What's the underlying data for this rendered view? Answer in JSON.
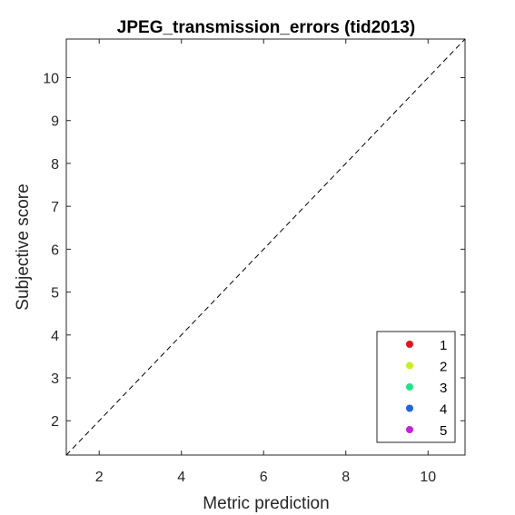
{
  "chart_data": {
    "type": "scatter",
    "title": "JPEG_transmission_errors (tid2013)",
    "xlabel": "Metric prediction",
    "ylabel": "Subjective score",
    "xlim": [
      1.2,
      10.9
    ],
    "ylim": [
      1.2,
      10.9
    ],
    "xticks": [
      2,
      4,
      6,
      8,
      10
    ],
    "yticks": [
      2,
      3,
      4,
      5,
      6,
      7,
      8,
      9,
      10
    ],
    "grid": false,
    "diagonal_reference": true,
    "legend_position": "bottom-right",
    "series": [
      {
        "name": "1",
        "color": "#e6141e",
        "points": []
      },
      {
        "name": "2",
        "color": "#c8f01e",
        "points": []
      },
      {
        "name": "3",
        "color": "#1ee682",
        "points": []
      },
      {
        "name": "4",
        "color": "#1e64e6",
        "points": []
      },
      {
        "name": "5",
        "color": "#c81ee6",
        "points": []
      }
    ]
  }
}
